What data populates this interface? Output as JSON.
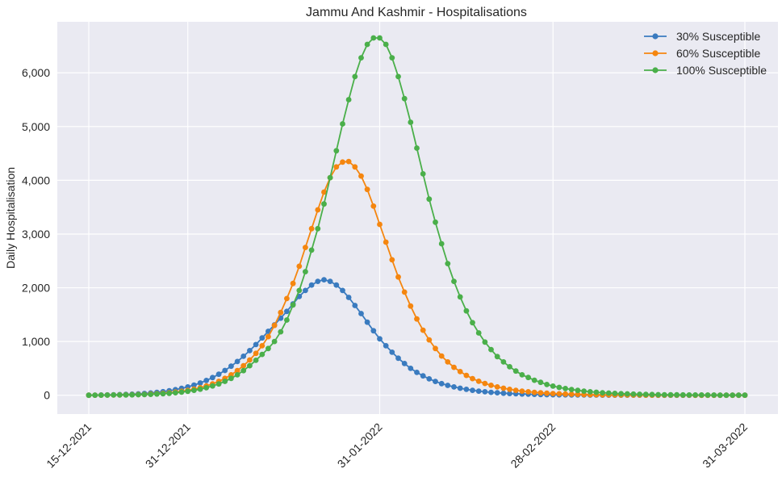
{
  "chart_data": {
    "type": "line",
    "title": "Jammu And Kashmir - Hospitalisations",
    "xlabel": "",
    "ylabel": "Daily Hospitalisation",
    "x_start": "2021-12-15",
    "x_end": "2022-03-31",
    "x_ticks": [
      "15-12-2021",
      "31-12-2021",
      "31-01-2022",
      "28-02-2022",
      "31-03-2022"
    ],
    "y_ticks": [
      "0",
      "1,000",
      "2,000",
      "3,000",
      "4,000",
      "5,000",
      "6,000"
    ],
    "ylim": [
      -350,
      6950
    ],
    "grid": true,
    "legend_position": "top-right",
    "series": [
      {
        "name": "30% Susceptible",
        "color": "#3a7bbf",
        "x": [
          "2021-12-15",
          "2021-12-16",
          "2021-12-17",
          "2021-12-18",
          "2021-12-19",
          "2021-12-20",
          "2021-12-21",
          "2021-12-22",
          "2021-12-23",
          "2021-12-24",
          "2021-12-25",
          "2021-12-26",
          "2021-12-27",
          "2021-12-28",
          "2021-12-29",
          "2021-12-30",
          "2021-12-31",
          "2022-01-01",
          "2022-01-02",
          "2022-01-03",
          "2022-01-04",
          "2022-01-05",
          "2022-01-06",
          "2022-01-07",
          "2022-01-08",
          "2022-01-09",
          "2022-01-10",
          "2022-01-11",
          "2022-01-12",
          "2022-01-13",
          "2022-01-14",
          "2022-01-15",
          "2022-01-16",
          "2022-01-17",
          "2022-01-18",
          "2022-01-19",
          "2022-01-20",
          "2022-01-21",
          "2022-01-22",
          "2022-01-23",
          "2022-01-24",
          "2022-01-25",
          "2022-01-26",
          "2022-01-27",
          "2022-01-28",
          "2022-01-29",
          "2022-01-30",
          "2022-01-31",
          "2022-02-01",
          "2022-02-02",
          "2022-02-03",
          "2022-02-04",
          "2022-02-05",
          "2022-02-06",
          "2022-02-07",
          "2022-02-08",
          "2022-02-09",
          "2022-02-10",
          "2022-02-11",
          "2022-02-12",
          "2022-02-13",
          "2022-02-14",
          "2022-02-15",
          "2022-02-16",
          "2022-02-17",
          "2022-02-18",
          "2022-02-19",
          "2022-02-20",
          "2022-02-21",
          "2022-02-22",
          "2022-02-23",
          "2022-02-24",
          "2022-02-25",
          "2022-02-26",
          "2022-02-27",
          "2022-02-28",
          "2022-03-01",
          "2022-03-02",
          "2022-03-03",
          "2022-03-04",
          "2022-03-05",
          "2022-03-06",
          "2022-03-07",
          "2022-03-08",
          "2022-03-09",
          "2022-03-10",
          "2022-03-11",
          "2022-03-12",
          "2022-03-13",
          "2022-03-14",
          "2022-03-15",
          "2022-03-16",
          "2022-03-17",
          "2022-03-18",
          "2022-03-19",
          "2022-03-20",
          "2022-03-21",
          "2022-03-22",
          "2022-03-23",
          "2022-03-24",
          "2022-03-25",
          "2022-03-26",
          "2022-03-27",
          "2022-03-28",
          "2022-03-29",
          "2022-03-30",
          "2022-03-31"
        ],
        "values": [
          0,
          2,
          4,
          6,
          9,
          12,
          16,
          20,
          26,
          33,
          42,
          53,
          66,
          83,
          103,
          127,
          155,
          189,
          229,
          275,
          329,
          391,
          461,
          540,
          628,
          725,
          830,
          943,
          1066,
          1190,
          1310,
          1435,
          1560,
          1700,
          1838,
          1950,
          2050,
          2120,
          2150,
          2120,
          2050,
          1950,
          1820,
          1670,
          1520,
          1360,
          1200,
          1050,
          920,
          800,
          690,
          590,
          500,
          425,
          360,
          305,
          257,
          217,
          183,
          154,
          130,
          109,
          92,
          77,
          65,
          54,
          46,
          38,
          32,
          27,
          23,
          19,
          16,
          13,
          11,
          9,
          8,
          7,
          6,
          5,
          4,
          3,
          3,
          2,
          2,
          2,
          1,
          1,
          1,
          1,
          1,
          1,
          0,
          0,
          0,
          0,
          0,
          0,
          0,
          0,
          0,
          0,
          0,
          0,
          0,
          0,
          0
        ]
      },
      {
        "name": "60% Susceptible",
        "color": "#f5860f",
        "x": [
          "2021-12-15",
          "2021-12-16",
          "2021-12-17",
          "2021-12-18",
          "2021-12-19",
          "2021-12-20",
          "2021-12-21",
          "2021-12-22",
          "2021-12-23",
          "2021-12-24",
          "2021-12-25",
          "2021-12-26",
          "2021-12-27",
          "2021-12-28",
          "2021-12-29",
          "2021-12-30",
          "2021-12-31",
          "2022-01-01",
          "2022-01-02",
          "2022-01-03",
          "2022-01-04",
          "2022-01-05",
          "2022-01-06",
          "2022-01-07",
          "2022-01-08",
          "2022-01-09",
          "2022-01-10",
          "2022-01-11",
          "2022-01-12",
          "2022-01-13",
          "2022-01-14",
          "2022-01-15",
          "2022-01-16",
          "2022-01-17",
          "2022-01-18",
          "2022-01-19",
          "2022-01-20",
          "2022-01-21",
          "2022-01-22",
          "2022-01-23",
          "2022-01-24",
          "2022-01-25",
          "2022-01-26",
          "2022-01-27",
          "2022-01-28",
          "2022-01-29",
          "2022-01-30",
          "2022-01-31",
          "2022-02-01",
          "2022-02-02",
          "2022-02-03",
          "2022-02-04",
          "2022-02-05",
          "2022-02-06",
          "2022-02-07",
          "2022-02-08",
          "2022-02-09",
          "2022-02-10",
          "2022-02-11",
          "2022-02-12",
          "2022-02-13",
          "2022-02-14",
          "2022-02-15",
          "2022-02-16",
          "2022-02-17",
          "2022-02-18",
          "2022-02-19",
          "2022-02-20",
          "2022-02-21",
          "2022-02-22",
          "2022-02-23",
          "2022-02-24",
          "2022-02-25",
          "2022-02-26",
          "2022-02-27",
          "2022-02-28",
          "2022-03-01",
          "2022-03-02",
          "2022-03-03",
          "2022-03-04",
          "2022-03-05",
          "2022-03-06",
          "2022-03-07",
          "2022-03-08",
          "2022-03-09",
          "2022-03-10",
          "2022-03-11",
          "2022-03-12",
          "2022-03-13",
          "2022-03-14",
          "2022-03-15",
          "2022-03-16",
          "2022-03-17",
          "2022-03-18",
          "2022-03-19",
          "2022-03-20",
          "2022-03-21",
          "2022-03-22",
          "2022-03-23",
          "2022-03-24",
          "2022-03-25",
          "2022-03-26",
          "2022-03-27",
          "2022-03-28",
          "2022-03-29",
          "2022-03-30",
          "2022-03-31"
        ],
        "values": [
          0,
          1,
          2,
          3,
          4,
          6,
          8,
          10,
          13,
          17,
          22,
          28,
          36,
          46,
          58,
          73,
          91,
          113,
          140,
          172,
          211,
          258,
          314,
          380,
          458,
          550,
          656,
          780,
          920,
          1090,
          1300,
          1540,
          1800,
          2080,
          2400,
          2750,
          3100,
          3450,
          3780,
          4050,
          4250,
          4340,
          4350,
          4250,
          4080,
          3830,
          3520,
          3180,
          2850,
          2520,
          2200,
          1920,
          1660,
          1420,
          1210,
          1030,
          870,
          730,
          620,
          520,
          440,
          370,
          310,
          260,
          220,
          185,
          155,
          130,
          110,
          92,
          77,
          64,
          54,
          45,
          38,
          32,
          27,
          22,
          19,
          16,
          13,
          11,
          9,
          8,
          7,
          6,
          5,
          4,
          3,
          3,
          2,
          2,
          2,
          1,
          1,
          1,
          1,
          1,
          0,
          0,
          0,
          0,
          0,
          0,
          0,
          0,
          0
        ]
      },
      {
        "name": "100% Susceptible",
        "color": "#4aaf4a",
        "x": [
          "2021-12-15",
          "2021-12-16",
          "2021-12-17",
          "2021-12-18",
          "2021-12-19",
          "2021-12-20",
          "2021-12-21",
          "2021-12-22",
          "2021-12-23",
          "2021-12-24",
          "2021-12-25",
          "2021-12-26",
          "2021-12-27",
          "2021-12-28",
          "2021-12-29",
          "2021-12-30",
          "2021-12-31",
          "2022-01-01",
          "2022-01-02",
          "2022-01-03",
          "2022-01-04",
          "2022-01-05",
          "2022-01-06",
          "2022-01-07",
          "2022-01-08",
          "2022-01-09",
          "2022-01-10",
          "2022-01-11",
          "2022-01-12",
          "2022-01-13",
          "2022-01-14",
          "2022-01-15",
          "2022-01-16",
          "2022-01-17",
          "2022-01-18",
          "2022-01-19",
          "2022-01-20",
          "2022-01-21",
          "2022-01-22",
          "2022-01-23",
          "2022-01-24",
          "2022-01-25",
          "2022-01-26",
          "2022-01-27",
          "2022-01-28",
          "2022-01-29",
          "2022-01-30",
          "2022-01-31",
          "2022-02-01",
          "2022-02-02",
          "2022-02-03",
          "2022-02-04",
          "2022-02-05",
          "2022-02-06",
          "2022-02-07",
          "2022-02-08",
          "2022-02-09",
          "2022-02-10",
          "2022-02-11",
          "2022-02-12",
          "2022-02-13",
          "2022-02-14",
          "2022-02-15",
          "2022-02-16",
          "2022-02-17",
          "2022-02-18",
          "2022-02-19",
          "2022-02-20",
          "2022-02-21",
          "2022-02-22",
          "2022-02-23",
          "2022-02-24",
          "2022-02-25",
          "2022-02-26",
          "2022-02-27",
          "2022-02-28",
          "2022-03-01",
          "2022-03-02",
          "2022-03-03",
          "2022-03-04",
          "2022-03-05",
          "2022-03-06",
          "2022-03-07",
          "2022-03-08",
          "2022-03-09",
          "2022-03-10",
          "2022-03-11",
          "2022-03-12",
          "2022-03-13",
          "2022-03-14",
          "2022-03-15",
          "2022-03-16",
          "2022-03-17",
          "2022-03-18",
          "2022-03-19",
          "2022-03-20",
          "2022-03-21",
          "2022-03-22",
          "2022-03-23",
          "2022-03-24",
          "2022-03-25",
          "2022-03-26",
          "2022-03-27",
          "2022-03-28",
          "2022-03-29",
          "2022-03-30",
          "2022-03-31"
        ],
        "values": [
          0,
          1,
          2,
          3,
          4,
          5,
          6,
          8,
          10,
          13,
          17,
          22,
          28,
          36,
          46,
          58,
          73,
          91,
          113,
          140,
          172,
          211,
          258,
          314,
          380,
          458,
          550,
          650,
          760,
          870,
          1000,
          1180,
          1400,
          1680,
          1950,
          2300,
          2700,
          3100,
          3560,
          4050,
          4550,
          5050,
          5500,
          5930,
          6280,
          6530,
          6650,
          6650,
          6530,
          6280,
          5930,
          5520,
          5080,
          4600,
          4120,
          3650,
          3220,
          2820,
          2450,
          2120,
          1830,
          1570,
          1350,
          1160,
          990,
          850,
          720,
          620,
          530,
          450,
          380,
          330,
          280,
          240,
          200,
          170,
          145,
          124,
          106,
          90,
          76,
          65,
          55,
          47,
          40,
          34,
          29,
          25,
          21,
          18,
          15,
          13,
          11,
          9,
          8,
          7,
          6,
          5,
          4,
          4,
          3,
          3,
          2,
          2,
          2,
          1,
          1
        ]
      }
    ]
  }
}
